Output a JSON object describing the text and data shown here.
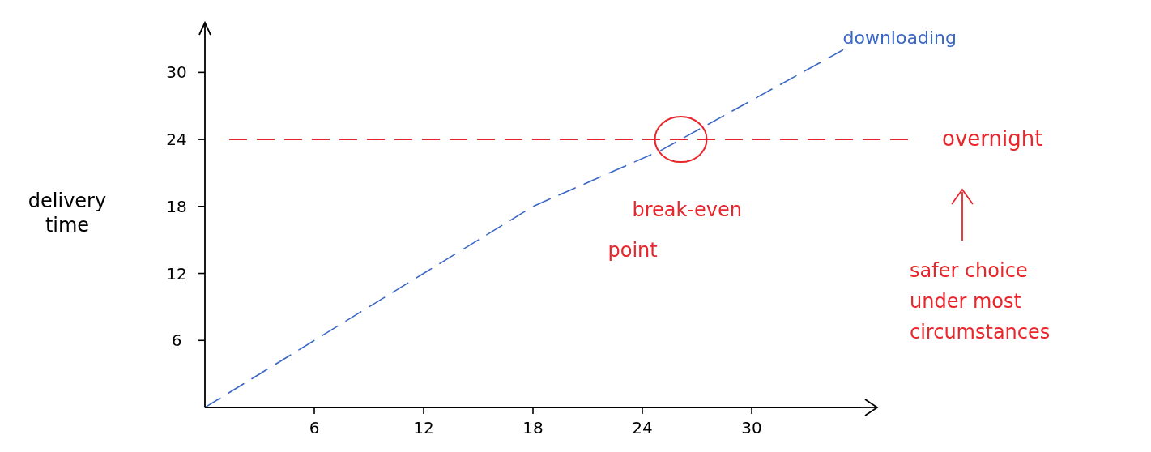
{
  "chart_data": {
    "type": "line",
    "ylabel": "delivery time",
    "xlim": [
      0,
      36
    ],
    "ylim": [
      0,
      33
    ],
    "xticks": [
      6,
      12,
      18,
      24,
      30
    ],
    "yticks": [
      6,
      12,
      18,
      24,
      30
    ],
    "grid": false,
    "line_style": "dashed",
    "marker": "none",
    "series": [
      {
        "name": "downloading",
        "color": "#3a66c4",
        "x": [
          0,
          6,
          12,
          18,
          25,
          35
        ],
        "values": [
          0,
          6,
          12,
          18,
          23,
          32
        ]
      }
    ],
    "ref_lines": [
      {
        "axis": "y",
        "value": 24,
        "label": "overnight",
        "color": "#e8262b",
        "line_style": "dashed"
      }
    ],
    "annotations": [
      "break-even point",
      "safer choice under most circumstances"
    ]
  }
}
